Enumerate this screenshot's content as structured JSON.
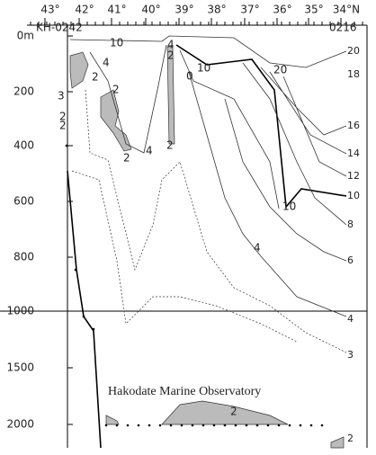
{
  "axis_top": {
    "labels": [
      "43°",
      "42°",
      "41°",
      "40°",
      "39°",
      "38°",
      "37°",
      "36°",
      "35°",
      "34°N"
    ]
  },
  "stations": {
    "start": "KH-0242",
    "end": "0216"
  },
  "axis_left": {
    "labels": [
      "0m",
      "200",
      "400",
      "600",
      "800",
      "1000",
      "1500",
      "2000"
    ]
  },
  "contours": {
    "right_labels": [
      "20",
      "18",
      "16",
      "14",
      "12",
      "10",
      "8",
      "6",
      "4",
      "3",
      "2"
    ],
    "inner_labels": [
      "10",
      "4",
      "2",
      "10",
      "20",
      "0",
      "4",
      "2",
      "2",
      "3",
      "2",
      "2",
      "2",
      "4",
      "2",
      "10",
      "4",
      "2"
    ]
  },
  "credit": "Hakodate Marine Observatory"
}
